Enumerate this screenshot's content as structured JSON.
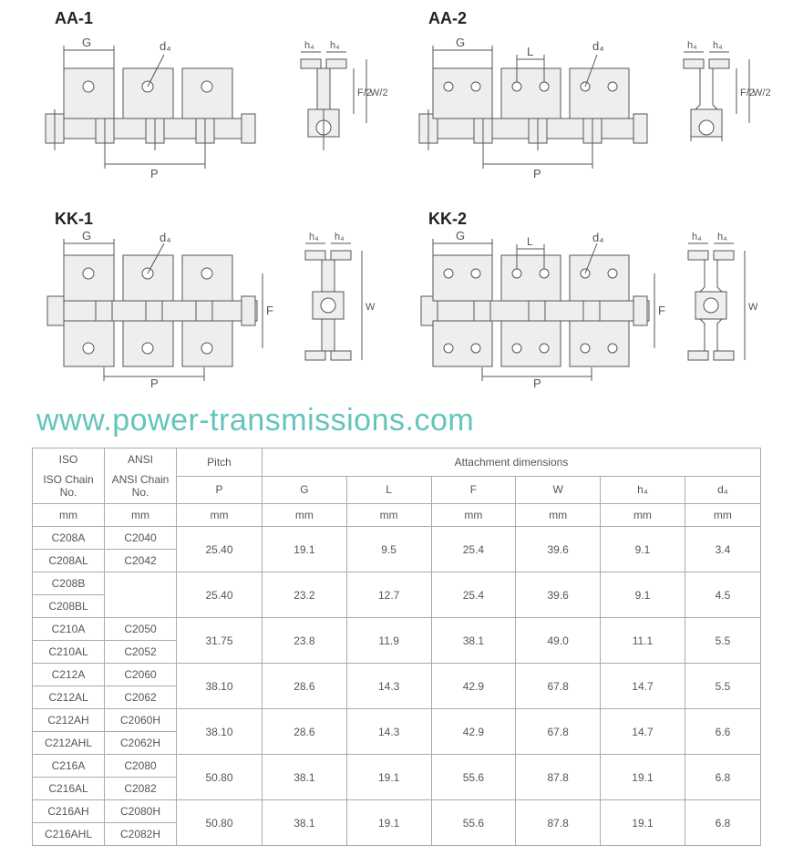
{
  "diagrams": {
    "aa1": "AA-1",
    "aa2": "AA-2",
    "kk1": "KK-1",
    "kk2": "KK-2",
    "dim_G": "G",
    "dim_L": "L",
    "dim_P": "P",
    "dim_d4": "d₄",
    "dim_h4": "h₄",
    "dim_W": "W",
    "dim_Wover2": "W/2",
    "dim_F": "F",
    "dim_Fover2": "F/2",
    "stroke": "#555555",
    "fill_light": "#eeeeee"
  },
  "watermark": {
    "text": "www.power-transmissions.com",
    "color": "#63c5bd",
    "fontsize": 34
  },
  "table": {
    "header": {
      "iso": "ISO",
      "ansi": "ANSI",
      "pitch": "Pitch",
      "attach": "Attachment dimensions",
      "iso_chain": "ISO Chain No.",
      "ansi_chain": "ANSI Chain No.",
      "P": "P",
      "G": "G",
      "L": "L",
      "F": "F",
      "W": "W",
      "h4": "h₄",
      "d4": "d₄",
      "unit": "mm"
    },
    "groups": [
      {
        "iso": [
          "C208A",
          "C208AL"
        ],
        "ansi": [
          "C2040",
          "C2042"
        ],
        "P": "25.40",
        "G": "19.1",
        "L": "9.5",
        "F": "25.4",
        "W": "39.6",
        "h4": "9.1",
        "d4": "3.4"
      },
      {
        "iso": [
          "C208B",
          "C208BL"
        ],
        "ansi": [
          "",
          ""
        ],
        "P": "25.40",
        "G": "23.2",
        "L": "12.7",
        "F": "25.4",
        "W": "39.6",
        "h4": "9.1",
        "d4": "4.5"
      },
      {
        "iso": [
          "C210A",
          "C210AL"
        ],
        "ansi": [
          "C2050",
          "C2052"
        ],
        "P": "31.75",
        "G": "23.8",
        "L": "11.9",
        "F": "38.1",
        "W": "49.0",
        "h4": "11.1",
        "d4": "5.5"
      },
      {
        "iso": [
          "C212A",
          "C212AL"
        ],
        "ansi": [
          "C2060",
          "C2062"
        ],
        "P": "38.10",
        "G": "28.6",
        "L": "14.3",
        "F": "42.9",
        "W": "67.8",
        "h4": "14.7",
        "d4": "5.5"
      },
      {
        "iso": [
          "C212AH",
          "C212AHL"
        ],
        "ansi": [
          "C2060H",
          "C2062H"
        ],
        "P": "38.10",
        "G": "28.6",
        "L": "14.3",
        "F": "42.9",
        "W": "67.8",
        "h4": "14.7",
        "d4": "6.6"
      },
      {
        "iso": [
          "C216A",
          "C216AL"
        ],
        "ansi": [
          "C2080",
          "C2082"
        ],
        "P": "50.80",
        "G": "38.1",
        "L": "19.1",
        "F": "55.6",
        "W": "87.8",
        "h4": "19.1",
        "d4": "6.8"
      },
      {
        "iso": [
          "C216AH",
          "C216AHL"
        ],
        "ansi": [
          "C2080H",
          "C2082H"
        ],
        "P": "50.80",
        "G": "38.1",
        "L": "19.1",
        "F": "55.6",
        "W": "87.8",
        "h4": "19.1",
        "d4": "6.8"
      }
    ],
    "border_color": "#aaaaaa",
    "text_color": "#555555",
    "fontsize": 12
  }
}
